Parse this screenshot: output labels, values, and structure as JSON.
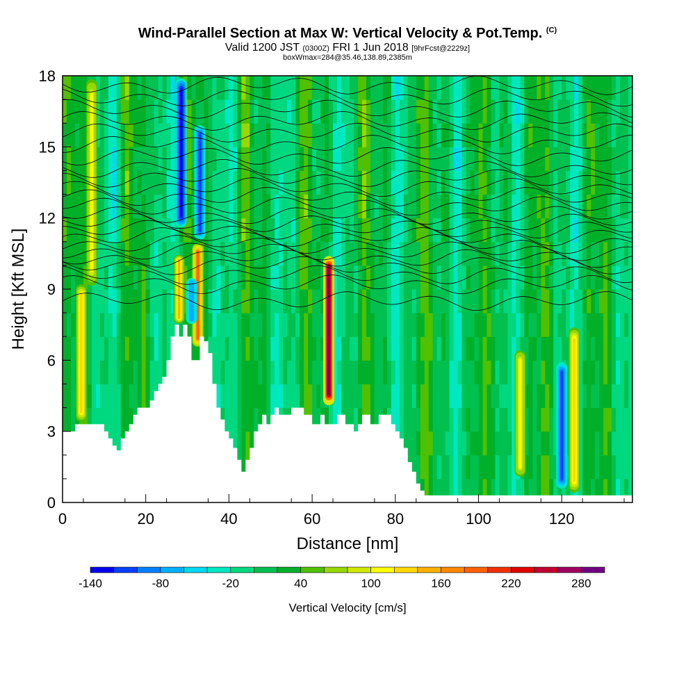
{
  "title": {
    "main": "Wind-Parallel Section at Max W: Vertical Velocity & Pot.Temp.",
    "main_mark": "(C)",
    "valid_prefix": "Valid 1200 JST",
    "valid_utc": "(0300Z)",
    "valid_date": "FRI 1 Jun 2018",
    "forecast": "[9hrFcst@2229z]",
    "box": "boxWmax=284@35.46,138.89,2385m"
  },
  "chart_data": {
    "type": "heatmap",
    "xlabel": "Distance [nm]",
    "ylabel": "Height [Kft MSL]",
    "xlim": [
      0,
      137
    ],
    "ylim": [
      0,
      18
    ],
    "x_ticks": [
      "0",
      "20",
      "40",
      "60",
      "80",
      "100",
      "120"
    ],
    "x_tick_values": [
      0,
      20,
      40,
      60,
      80,
      100,
      120
    ],
    "y_ticks": [
      "0",
      "3",
      "6",
      "9",
      "12",
      "15",
      "18"
    ],
    "y_tick_values": [
      0,
      3,
      6,
      9,
      12,
      15,
      18
    ],
    "colorbar": {
      "title": "Vertical Velocity [cm/s]",
      "labels": [
        "-140",
        "-80",
        "-20",
        "40",
        "100",
        "160",
        "220",
        "280"
      ],
      "label_values": [
        -140,
        -80,
        -20,
        40,
        100,
        160,
        220,
        280
      ],
      "levels": [
        -140,
        -120,
        -100,
        -80,
        -60,
        -40,
        -20,
        0,
        20,
        40,
        60,
        80,
        100,
        120,
        140,
        160,
        180,
        200,
        220,
        240,
        260,
        280,
        300
      ],
      "colors": [
        "#0000ee",
        "#0040ff",
        "#0080ff",
        "#00b0ff",
        "#00d8f0",
        "#00e8c0",
        "#00d880",
        "#00c050",
        "#00b028",
        "#50c000",
        "#98d800",
        "#d0e800",
        "#ffff00",
        "#ffd800",
        "#ffb000",
        "#ff8800",
        "#ff6000",
        "#f03000",
        "#e00000",
        "#c00030",
        "#a00060",
        "#700080"
      ]
    },
    "terrain": {
      "x_nm": [
        0,
        3,
        5,
        8,
        10,
        11,
        12,
        13,
        14,
        15,
        16,
        17,
        18,
        19,
        20,
        21,
        22,
        23,
        24,
        25,
        26,
        27,
        28,
        29,
        30,
        31,
        32,
        33,
        34,
        35,
        36,
        37,
        38,
        39,
        40,
        41,
        42,
        43,
        44,
        45,
        46,
        47,
        48,
        49,
        50,
        51,
        52,
        53,
        54,
        55,
        56,
        57,
        58,
        59,
        60,
        61,
        62,
        63,
        64,
        65,
        66,
        67,
        68,
        69,
        70,
        71,
        72,
        73,
        74,
        75,
        76,
        77,
        78,
        79,
        80,
        81,
        82,
        83,
        84,
        85,
        86,
        87,
        137
      ],
      "height_kft": [
        3.0,
        3.3,
        3.3,
        3.3,
        3.0,
        2.7,
        2.4,
        2.2,
        2.7,
        3.0,
        3.3,
        3.7,
        4.0,
        4.0,
        4.0,
        4.3,
        4.7,
        5.0,
        5.3,
        6.0,
        7.0,
        7.5,
        7.0,
        7.5,
        7.0,
        6.0,
        6.0,
        7.0,
        6.8,
        6.3,
        5.0,
        4.0,
        3.5,
        3.0,
        2.7,
        2.3,
        1.8,
        1.3,
        1.8,
        2.3,
        3.0,
        3.3,
        3.7,
        3.3,
        3.7,
        4.0,
        3.7,
        3.7,
        3.7,
        4.0,
        4.0,
        4.0,
        3.7,
        3.7,
        3.3,
        3.3,
        3.7,
        3.3,
        3.3,
        3.3,
        3.7,
        3.7,
        3.3,
        3.3,
        3.0,
        3.3,
        3.7,
        3.7,
        3.3,
        3.3,
        3.7,
        3.7,
        3.7,
        3.3,
        3.0,
        2.7,
        2.3,
        1.7,
        1.3,
        0.8,
        0.5,
        0.3,
        0.3
      ]
    },
    "updraft_columns": [
      {
        "x_nm": 4.5,
        "bottom_kft": 3.3,
        "top_kft": 9.3,
        "max_cm_s": 120
      },
      {
        "x_nm": 7.0,
        "bottom_kft": 9.0,
        "top_kft": 18.0,
        "max_cm_s": 110
      },
      {
        "x_nm": 28.0,
        "bottom_kft": 7.5,
        "top_kft": 10.5,
        "max_cm_s": 140
      },
      {
        "x_nm": 32.5,
        "bottom_kft": 6.5,
        "top_kft": 11.0,
        "max_cm_s": 190
      },
      {
        "x_nm": 64.0,
        "bottom_kft": 4.0,
        "top_kft": 10.5,
        "max_cm_s": 284
      },
      {
        "x_nm": 110.0,
        "bottom_kft": 1.0,
        "top_kft": 6.5,
        "max_cm_s": 110
      },
      {
        "x_nm": 123.0,
        "bottom_kft": 0.3,
        "top_kft": 7.5,
        "max_cm_s": 130
      }
    ],
    "downdraft_columns": [
      {
        "x_nm": 28.5,
        "bottom_kft": 11.5,
        "top_kft": 18.0,
        "min_cm_s": -140
      },
      {
        "x_nm": 31.0,
        "bottom_kft": 7.5,
        "top_kft": 9.5,
        "min_cm_s": -80
      },
      {
        "x_nm": 33.0,
        "bottom_kft": 11.0,
        "top_kft": 16.0,
        "min_cm_s": -120
      },
      {
        "x_nm": 120.0,
        "bottom_kft": 0.5,
        "top_kft": 6.0,
        "min_cm_s": -110
      }
    ],
    "theta_contours_kft": [
      8.5,
      9.2,
      9.6,
      10.0,
      10.3,
      10.6,
      10.9,
      11.2,
      11.5,
      11.8,
      12.1,
      12.5,
      12.9,
      13.3,
      13.7,
      14.1,
      14.6,
      15.1,
      15.6,
      16.1,
      16.6,
      17.1,
      17.6
    ]
  }
}
